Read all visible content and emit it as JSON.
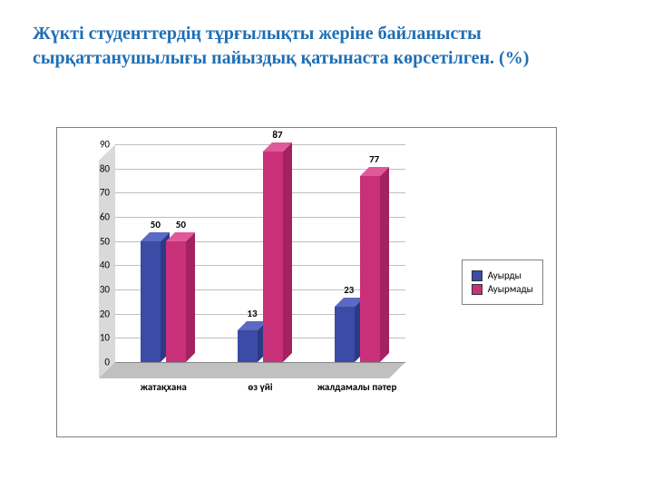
{
  "title": "Жүкті студенттердің тұрғылықты жеріне байланысты сырқаттанушылығы пайыздық қатынаста көрсетілген. (%)",
  "title_color": "#1f6fb4",
  "chart": {
    "type": "bar-3d-clustered",
    "categories": [
      "жатақхана",
      "өз үйі",
      "жалдамалы пәтер"
    ],
    "series": [
      {
        "name": "Ауырды",
        "color": "#3b4ba6",
        "color_top": "#5a6ac2",
        "color_side": "#2c3a86",
        "values": [
          50,
          13,
          23
        ]
      },
      {
        "name": "Ауырмады",
        "color": "#c9307a",
        "color_top": "#e05a9a",
        "color_side": "#a3225f",
        "values": [
          50,
          87,
          77
        ]
      }
    ],
    "ylim": [
      0,
      90
    ],
    "ytick_step": 10,
    "grid_color": "#bfbfbf",
    "axis_color": "#808080",
    "label_fontsize": 11,
    "legend_border": "#808080"
  }
}
